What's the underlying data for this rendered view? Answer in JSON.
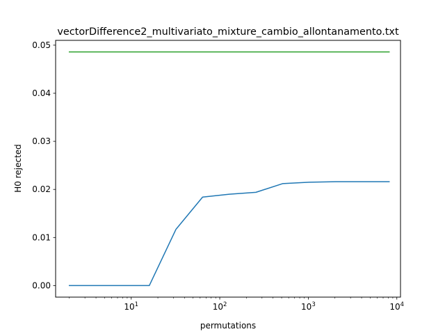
{
  "chart_data": {
    "type": "line",
    "title": "vectorDifference2_multivariato_mixture_cambio_allontanamento.txt",
    "xlabel": "permutations",
    "ylabel": "H0 rejected",
    "x_scale": "log",
    "xlim": [
      1.4,
      11000
    ],
    "ylim": [
      -0.0024,
      0.051
    ],
    "grid": false,
    "legend": null,
    "x_ticks": [
      {
        "value": 10,
        "base": "10",
        "exp": "1"
      },
      {
        "value": 100,
        "base": "10",
        "exp": "2"
      },
      {
        "value": 1000,
        "base": "10",
        "exp": "3"
      },
      {
        "value": 10000,
        "base": "10",
        "exp": "4"
      }
    ],
    "y_ticks": [
      {
        "value": 0.0,
        "label": "0.00"
      },
      {
        "value": 0.01,
        "label": "0.01"
      },
      {
        "value": 0.02,
        "label": "0.02"
      },
      {
        "value": 0.03,
        "label": "0.03"
      },
      {
        "value": 0.04,
        "label": "0.04"
      },
      {
        "value": 0.05,
        "label": "0.05"
      }
    ],
    "series": [
      {
        "color": "#1f77b4",
        "x": [
          2,
          4,
          8,
          16,
          32,
          64,
          128,
          256,
          512,
          1024,
          2048,
          4096,
          8192
        ],
        "values": [
          0.0,
          0.0,
          0.0,
          0.0,
          0.0117,
          0.0184,
          0.019,
          0.0194,
          0.0212,
          0.0215,
          0.0216,
          0.0216,
          0.0216
        ]
      },
      {
        "color": "#2ca02c",
        "x": [
          2,
          4,
          8,
          16,
          32,
          64,
          128,
          256,
          512,
          1024,
          2048,
          4096,
          8192
        ],
        "values": [
          0.0486,
          0.0486,
          0.0486,
          0.0486,
          0.0486,
          0.0486,
          0.0486,
          0.0486,
          0.0486,
          0.0486,
          0.0486,
          0.0486,
          0.0486
        ]
      }
    ]
  }
}
